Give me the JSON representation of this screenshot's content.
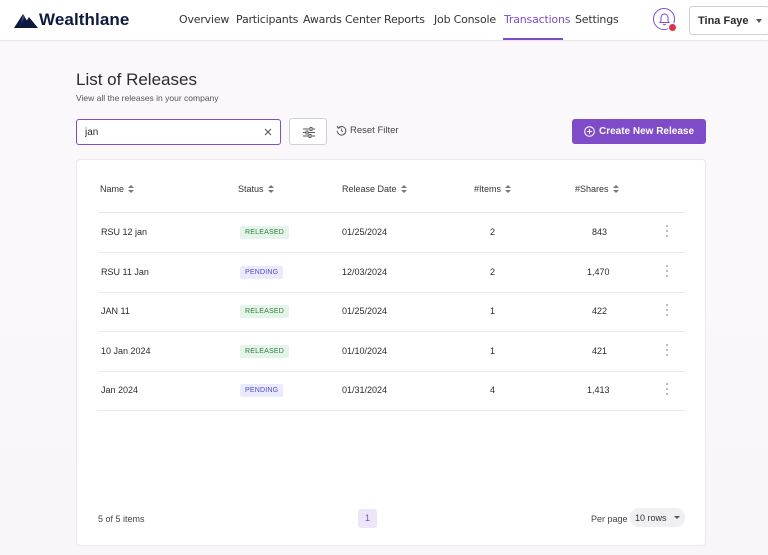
{
  "brand": {
    "name": "Wealthlane",
    "logo_icon": "wealthlane-mountain-logo"
  },
  "nav": {
    "items": [
      "Overview",
      "Participants",
      "Awards Center",
      "Reports",
      "Job Console",
      "Transactions",
      "Settings"
    ],
    "active": "Transactions",
    "user_name": "Tina Faye"
  },
  "page": {
    "title": "List of Releases",
    "subtitle": "View all the releases in your company"
  },
  "filters": {
    "search_value": "jan",
    "search_placeholder": "",
    "reset_label": "Reset Filter",
    "create_label": "Create New Release"
  },
  "table": {
    "columns": [
      "Name",
      "Status",
      "Release Date",
      "#Items",
      "#Shares"
    ],
    "rows": [
      {
        "name": "RSU 12 jan",
        "status": "RELEASED",
        "date": "01/25/2024",
        "items": "2",
        "shares": "843"
      },
      {
        "name": "RSU 11 Jan",
        "status": "PENDING",
        "date": "12/03/2024",
        "items": "2",
        "shares": "1,470"
      },
      {
        "name": "JAN 11",
        "status": "RELEASED",
        "date": "01/25/2024",
        "items": "1",
        "shares": "422"
      },
      {
        "name": "10 Jan 2024",
        "status": "RELEASED",
        "date": "01/10/2024",
        "items": "1",
        "shares": "421"
      },
      {
        "name": "Jan 2024",
        "status": "PENDING",
        "date": "01/31/2024",
        "items": "4",
        "shares": "1,413"
      }
    ]
  },
  "pagination": {
    "summary": "5 of 5 items",
    "current_page": "1",
    "per_page_label": "Per page",
    "rows_value": "10 rows"
  },
  "colors": {
    "accent": "#7e4cc9",
    "released_bg": "#e5f4e8",
    "released_text": "#2e7d40",
    "pending_bg": "#ebeafd",
    "pending_text": "#4b4ac2",
    "notification": "#e0314a"
  }
}
